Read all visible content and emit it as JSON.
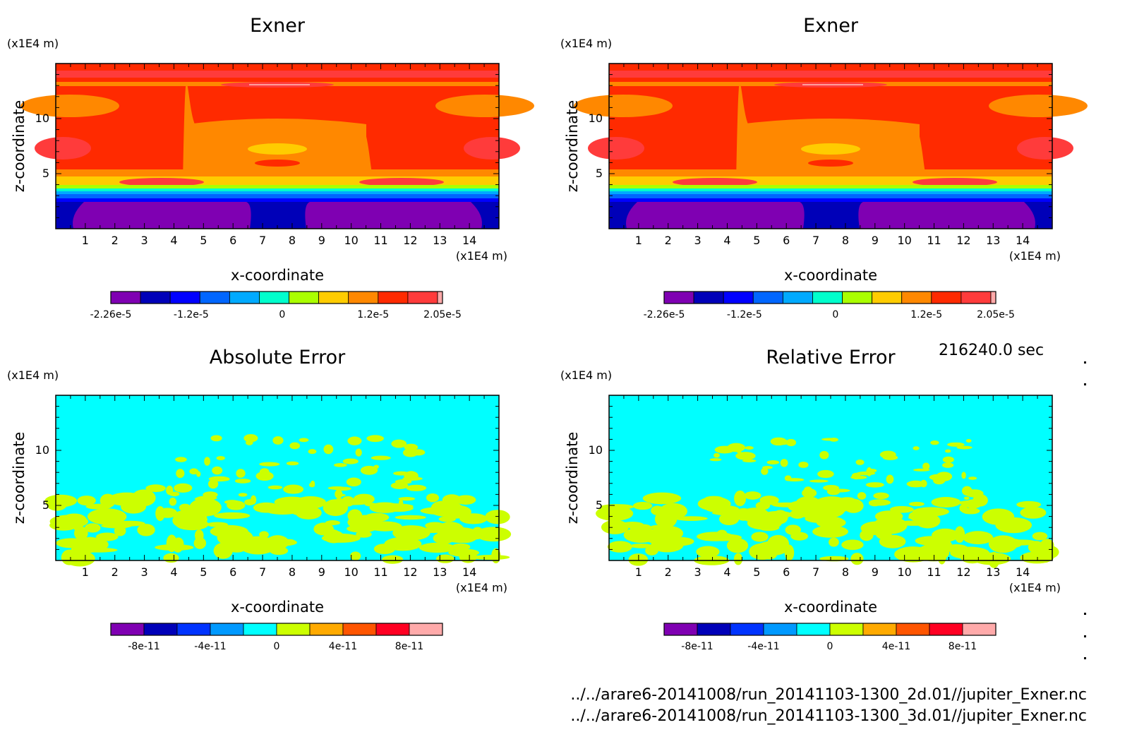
{
  "panels": [
    {
      "title": "Exner",
      "y_unit": "(x1E4 m)",
      "x_unit": "(x1E4 m)",
      "xlabel": "x-coordinate",
      "ylabel": "z-coordinate",
      "colorbar_ticks": [
        "-2.26e-5",
        "-1.2e-5",
        "0",
        "1.2e-5",
        "2.05e-5"
      ],
      "colorbar_values": [
        -2.26e-05,
        -1.2e-05,
        0,
        1.2e-05,
        2.05e-05
      ],
      "colorbar_range": [
        -2.26e-05,
        2.05e-05
      ],
      "kind": "field"
    },
    {
      "title": "Exner",
      "y_unit": "(x1E4 m)",
      "x_unit": "(x1E4 m)",
      "xlabel": "x-coordinate",
      "ylabel": "z-coordinate",
      "colorbar_ticks": [
        "-2.26e-5",
        "-1.2e-5",
        "0",
        "1.2e-5",
        "2.05e-5"
      ],
      "colorbar_values": [
        -2.26e-05,
        -1.2e-05,
        0,
        1.2e-05,
        2.05e-05
      ],
      "colorbar_range": [
        -2.26e-05,
        2.05e-05
      ],
      "kind": "field"
    },
    {
      "title": "Absolute Error",
      "y_unit": "(x1E4 m)",
      "x_unit": "(x1E4 m)",
      "xlabel": "x-coordinate",
      "ylabel": "z-coordinate",
      "colorbar_ticks": [
        "-8e-11",
        "-4e-11",
        "0",
        "4e-11",
        "8e-11"
      ],
      "colorbar_values": [
        -8e-11,
        -4e-11,
        0,
        4e-11,
        8e-11
      ],
      "colorbar_range": [
        -1e-10,
        1e-10
      ],
      "kind": "error"
    },
    {
      "title": "Relative Error",
      "y_unit": "(x1E4 m)",
      "x_unit": "(x1E4 m)",
      "xlabel": "x-coordinate",
      "ylabel": "z-coordinate",
      "colorbar_ticks": [
        "-8e-11",
        "-4e-11",
        "0",
        "4e-11",
        "8e-11"
      ],
      "colorbar_values": [
        -8e-11,
        -4e-11,
        0,
        4e-11,
        8e-11
      ],
      "colorbar_range": [
        -1e-10,
        1e-10
      ],
      "kind": "error"
    }
  ],
  "footer": {
    "time": "216240.0 sec",
    "path_2d": "../../arare6-20141008/run_20141103-1300_2d.01//jupiter_Exner.nc",
    "path_3d": "../../arare6-20141008/run_20141103-1300_3d.01//jupiter_Exner.nc"
  },
  "colors": {
    "field_levels": [
      "#7f00b2",
      "#0000b8",
      "#0000ff",
      "#0066ff",
      "#00aaff",
      "#00ffcc",
      "#aaff00",
      "#ffcc00",
      "#ff8800",
      "#ff2a00",
      "#ff3b3b",
      "#ffaaaa"
    ],
    "error_levels": [
      "#7f00b2",
      "#0000b8",
      "#0033ff",
      "#0099ff",
      "#00ffff",
      "#ccff00",
      "#ffaa00",
      "#ff5500",
      "#ff0022",
      "#ffaaaa"
    ]
  },
  "chart_data": [
    {
      "type": "heatmap",
      "title": "Exner",
      "xlabel": "x-coordinate",
      "ylabel": "z-coordinate",
      "x_unit": "(x1E4 m)",
      "y_unit": "(x1E4 m)",
      "xlim": [
        0,
        15
      ],
      "ylim": [
        0,
        15
      ],
      "x_ticks": [
        1,
        2,
        3,
        4,
        5,
        6,
        7,
        8,
        9,
        10,
        11,
        12,
        13,
        14
      ],
      "y_ticks": [
        5,
        10
      ],
      "colorbar_ticks": [
        "-2.26e-5",
        "-1.2e-5",
        "0",
        "1.2e-5",
        "2.05e-5"
      ]
    },
    {
      "type": "heatmap",
      "title": "Exner",
      "xlabel": "x-coordinate",
      "ylabel": "z-coordinate",
      "x_unit": "(x1E4 m)",
      "y_unit": "(x1E4 m)",
      "xlim": [
        0,
        15
      ],
      "ylim": [
        0,
        15
      ],
      "x_ticks": [
        1,
        2,
        3,
        4,
        5,
        6,
        7,
        8,
        9,
        10,
        11,
        12,
        13,
        14
      ],
      "y_ticks": [
        5,
        10
      ],
      "colorbar_ticks": [
        "-2.26e-5",
        "-1.2e-5",
        "0",
        "1.2e-5",
        "2.05e-5"
      ]
    },
    {
      "type": "heatmap",
      "title": "Absolute Error",
      "xlabel": "x-coordinate",
      "ylabel": "z-coordinate",
      "x_unit": "(x1E4 m)",
      "y_unit": "(x1E4 m)",
      "xlim": [
        0,
        15
      ],
      "ylim": [
        0,
        15
      ],
      "x_ticks": [
        1,
        2,
        3,
        4,
        5,
        6,
        7,
        8,
        9,
        10,
        11,
        12,
        13,
        14
      ],
      "y_ticks": [
        5,
        10
      ],
      "colorbar_ticks": [
        "-8e-11",
        "-4e-11",
        "0",
        "4e-11",
        "8e-11"
      ]
    },
    {
      "type": "heatmap",
      "title": "Relative Error",
      "xlabel": "x-coordinate",
      "ylabel": "z-coordinate",
      "x_unit": "(x1E4 m)",
      "y_unit": "(x1E4 m)",
      "xlim": [
        0,
        15
      ],
      "ylim": [
        0,
        15
      ],
      "x_ticks": [
        1,
        2,
        3,
        4,
        5,
        6,
        7,
        8,
        9,
        10,
        11,
        12,
        13,
        14
      ],
      "y_ticks": [
        5,
        10
      ],
      "colorbar_ticks": [
        "-8e-11",
        "-4e-11",
        "0",
        "4e-11",
        "8e-11"
      ]
    }
  ]
}
